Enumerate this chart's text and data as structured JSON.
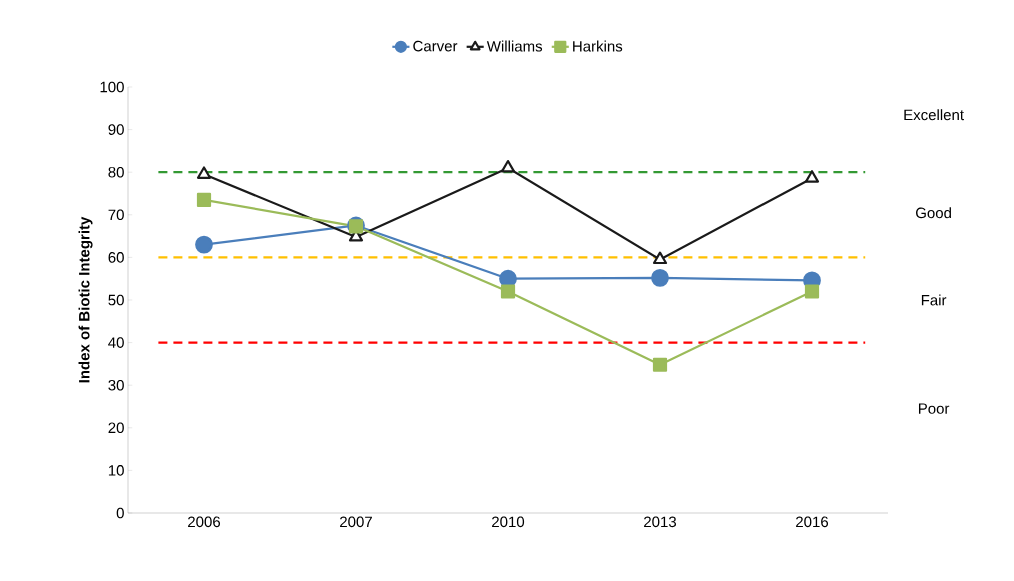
{
  "chart_data": {
    "type": "line",
    "ylabel": "Index of Biotic Integrity",
    "categories": [
      "2006",
      "2007",
      "2010",
      "2013",
      "2016"
    ],
    "series": [
      {
        "name": "Carver",
        "color": "#4a7ebb",
        "marker": "circle",
        "values": [
          63,
          67.5,
          55,
          55.2,
          54.6
        ]
      },
      {
        "name": "Williams",
        "color": "#1a1a1a",
        "marker": "triangle",
        "values": [
          79.5,
          64.8,
          81,
          59.5,
          78.6
        ]
      },
      {
        "name": "Harkins",
        "color": "#9bbb59",
        "marker": "square",
        "values": [
          73.5,
          67.3,
          52,
          34.8,
          52
        ]
      }
    ],
    "ylim": [
      0,
      100
    ],
    "yticks": [
      0,
      10,
      20,
      30,
      40,
      50,
      60,
      70,
      80,
      90,
      100
    ],
    "ref_lines": [
      {
        "axis": "y",
        "value": 80,
        "color": "#339933",
        "line_style": "dashed"
      },
      {
        "axis": "y",
        "value": 60,
        "color": "#ffc000",
        "line_style": "dashed"
      },
      {
        "axis": "y",
        "value": 40,
        "color": "#ff0000",
        "line_style": "dashed"
      }
    ],
    "annotations": [
      "Excellent",
      "Good",
      "Fair",
      "Poor"
    ],
    "legend": "top",
    "grid": false,
    "line_style": "solid"
  }
}
